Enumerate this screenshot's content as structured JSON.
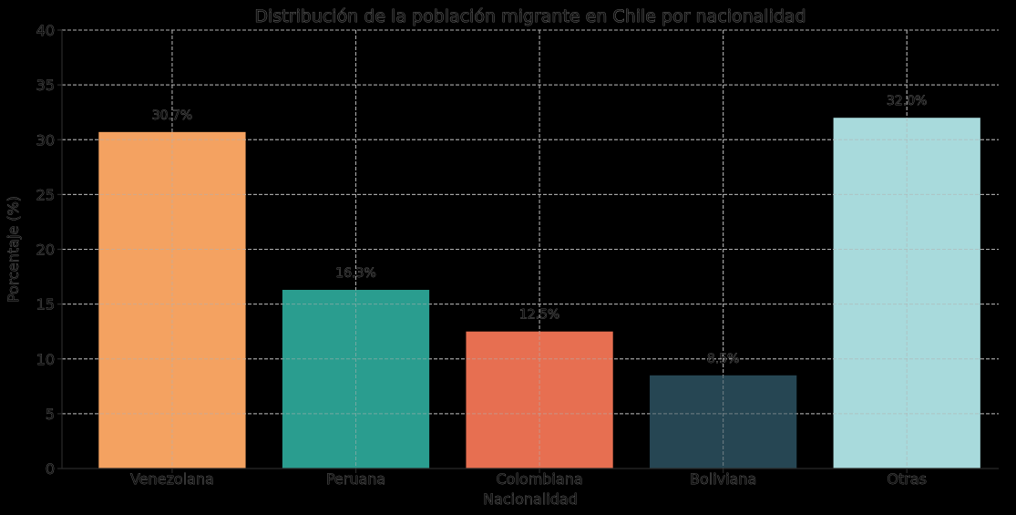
{
  "chart_data": {
    "type": "bar",
    "title": "Distribución de la población migrante en Chile por nacionalidad",
    "xlabel": "Nacionalidad",
    "ylabel": "Porcentaje (%)",
    "categories": [
      "Venezolana",
      "Peruana",
      "Colombiana",
      "Boliviana",
      "Otras"
    ],
    "values": [
      30.7,
      16.3,
      12.5,
      8.5,
      32.0
    ],
    "data_labels": [
      "30.7%",
      "16.3%",
      "12.5%",
      "8.5%",
      "32.0%"
    ],
    "colors": [
      "#f4a261",
      "#2a9d8f",
      "#e76f51",
      "#264653",
      "#a8dadc"
    ],
    "ylim": [
      0,
      40
    ],
    "yticks": [
      0,
      5,
      10,
      15,
      20,
      25,
      30,
      35,
      40
    ],
    "grid": true,
    "background": "#000000"
  }
}
